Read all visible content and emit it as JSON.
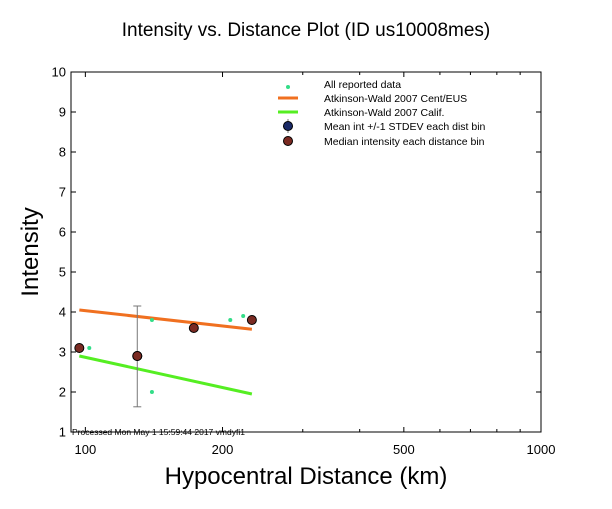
{
  "chart_data": {
    "type": "scatter",
    "title": "Intensity vs. Distance Plot (ID us10008mes)",
    "xlabel": "Hypocentral Distance (km)",
    "ylabel": "Intensity",
    "x_scale": "log",
    "xlim": [
      93,
      1000
    ],
    "ylim": [
      1,
      10
    ],
    "x_ticks": [
      100,
      200,
      500,
      1000
    ],
    "x_tick_labels": [
      "100",
      "200",
      "500",
      "1000"
    ],
    "y_ticks": [
      1,
      2,
      3,
      4,
      5,
      6,
      7,
      8,
      9,
      10
    ],
    "y_tick_labels": [
      "1",
      "2",
      "3",
      "4",
      "5",
      "6",
      "7",
      "8",
      "9",
      "10"
    ],
    "grid": false,
    "legend_position": "top-right",
    "footer_note": "Processed Mon May  1 15:59:44 2017 vmdyfi1",
    "legend": [
      {
        "label": "All reported data",
        "marker": "dot",
        "color": "#33dd88"
      },
      {
        "label": "Atkinson-Wald 2007 Cent/EUS",
        "marker": "line",
        "color": "#f07020"
      },
      {
        "label": "Atkinson-Wald 2007 Calif.",
        "marker": "line",
        "color": "#55ee22"
      },
      {
        "label": "Mean int +/-1 STDEV each dist bin",
        "marker": "circle",
        "color": "#1a2a66"
      },
      {
        "label": "Median intensity each distance bin",
        "marker": "circle",
        "color": "#7a2a22"
      }
    ],
    "series": [
      {
        "name": "All reported data",
        "color": "#33dd88",
        "points": [
          {
            "x": 97,
            "y": 3.1
          },
          {
            "x": 102,
            "y": 3.1
          },
          {
            "x": 140,
            "y": 3.8
          },
          {
            "x": 140,
            "y": 2.0
          },
          {
            "x": 208,
            "y": 3.8
          },
          {
            "x": 222,
            "y": 3.9
          }
        ]
      },
      {
        "name": "Atkinson-Wald 2007 Cent/EUS",
        "color": "#f07020",
        "points": [
          {
            "x": 97,
            "y": 4.05
          },
          {
            "x": 232,
            "y": 3.57
          }
        ]
      },
      {
        "name": "Atkinson-Wald 2007 Calif.",
        "color": "#55ee22",
        "points": [
          {
            "x": 97,
            "y": 2.9
          },
          {
            "x": 232,
            "y": 1.95
          }
        ]
      },
      {
        "name": "Mean int +/-1 STDEV each dist bin",
        "color": "#1a2a66",
        "points": [
          {
            "x": 130,
            "y": 2.9,
            "y_low": 1.63,
            "y_high": 4.15
          }
        ]
      },
      {
        "name": "Median intensity each distance bin",
        "color": "#7a2a22",
        "points": [
          {
            "x": 97,
            "y": 3.1
          },
          {
            "x": 130,
            "y": 2.9
          },
          {
            "x": 173,
            "y": 3.6
          },
          {
            "x": 232,
            "y": 3.8
          }
        ]
      }
    ]
  }
}
